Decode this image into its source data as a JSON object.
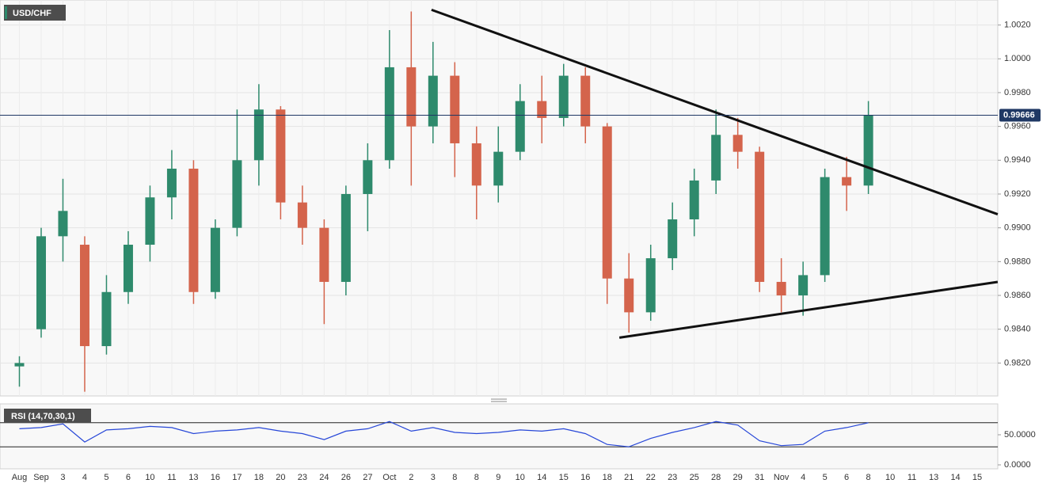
{
  "chart_data": [
    {
      "type": "candlestick",
      "title": "USD/CHF",
      "categories": [
        "Aug",
        "Sep",
        "3",
        "4",
        "5",
        "6",
        "10",
        "11",
        "13",
        "16",
        "17",
        "18",
        "20",
        "23",
        "24",
        "26",
        "27",
        "Oct",
        "2",
        "3",
        "8",
        "8",
        "9",
        "10",
        "14",
        "15",
        "16",
        "18",
        "21",
        "22",
        "23",
        "25",
        "28",
        "29",
        "31",
        "Nov",
        "4",
        "5",
        "6",
        "8",
        "10",
        "11",
        "13",
        "14",
        "15"
      ],
      "open": [
        0.9818,
        0.984,
        0.9895,
        0.989,
        0.983,
        0.9862,
        0.989,
        0.9918,
        0.9935,
        0.9862,
        0.99,
        0.994,
        0.997,
        0.9915,
        0.99,
        0.9868,
        0.992,
        0.994,
        0.9995,
        0.996,
        0.999,
        0.995,
        0.9925,
        0.9945,
        0.9975,
        0.9965,
        0.999,
        0.996,
        0.987,
        0.985,
        0.9882,
        0.9905,
        0.9928,
        0.9955,
        0.9945,
        0.9868,
        0.986,
        0.9872,
        0.993,
        0.9925,
        null,
        null,
        null,
        null,
        null
      ],
      "high": [
        0.9824,
        0.99,
        0.9929,
        0.9895,
        0.9872,
        0.9898,
        0.9925,
        0.9946,
        0.994,
        0.9905,
        0.997,
        0.9985,
        0.9972,
        0.9925,
        0.9905,
        0.9925,
        0.995,
        1.0017,
        1.0028,
        1.001,
        0.9998,
        0.996,
        0.996,
        0.9985,
        0.999,
        0.9997,
        0.9995,
        0.9962,
        0.9885,
        0.989,
        0.9915,
        0.9935,
        0.997,
        0.9965,
        0.9948,
        0.9882,
        0.988,
        0.9935,
        0.9942,
        0.9975,
        null,
        null,
        null,
        null,
        null
      ],
      "low": [
        0.9806,
        0.9835,
        0.988,
        0.9803,
        0.9825,
        0.9855,
        0.988,
        0.9905,
        0.9855,
        0.9858,
        0.9895,
        0.9925,
        0.9905,
        0.989,
        0.9843,
        0.986,
        0.9898,
        0.9935,
        0.9925,
        0.995,
        0.993,
        0.9905,
        0.9915,
        0.994,
        0.995,
        0.996,
        0.995,
        0.9855,
        0.9838,
        0.9845,
        0.9875,
        0.9895,
        0.992,
        0.9935,
        0.9862,
        0.985,
        0.9848,
        0.9868,
        0.991,
        0.992,
        null,
        null,
        null,
        null,
        null
      ],
      "close": [
        0.982,
        0.9895,
        0.991,
        0.983,
        0.9862,
        0.989,
        0.9918,
        0.9935,
        0.9862,
        0.99,
        0.994,
        0.997,
        0.9915,
        0.99,
        0.9868,
        0.992,
        0.994,
        0.9995,
        0.996,
        0.999,
        0.995,
        0.9925,
        0.9945,
        0.9975,
        0.9965,
        0.999,
        0.996,
        0.987,
        0.985,
        0.9882,
        0.9905,
        0.9928,
        0.9955,
        0.9945,
        0.9868,
        0.986,
        0.9872,
        0.993,
        0.9925,
        0.99666,
        null,
        null,
        null,
        null,
        null
      ],
      "up_color": "#2e8a6c",
      "down_color": "#d4644c",
      "ylim": [
        0.98005,
        1.00348
      ],
      "yticks": [
        {
          "value": 1.002,
          "label": "1.0020"
        },
        {
          "value": 1.0,
          "label": "1.0000"
        },
        {
          "value": 0.998,
          "label": "0.9980"
        },
        {
          "value": 0.996,
          "label": "0.9960"
        },
        {
          "value": 0.994,
          "label": "0.9940"
        },
        {
          "value": 0.992,
          "label": "0.9920"
        },
        {
          "value": 0.99,
          "label": "0.9900"
        },
        {
          "value": 0.988,
          "label": "0.9880"
        },
        {
          "value": 0.986,
          "label": "0.9860"
        },
        {
          "value": 0.984,
          "label": "0.9840"
        },
        {
          "value": 0.982,
          "label": "0.9820"
        }
      ],
      "grid": true,
      "trendlines": [
        {
          "x": [
            18.93,
            44.94
          ],
          "y": [
            1.0029,
            0.9908
          ]
        },
        {
          "x": [
            27.56,
            44.94
          ],
          "y": [
            0.9835,
            0.9868
          ]
        }
      ],
      "trendline_color": "#111111"
    },
    {
      "type": "line",
      "title": "RSI (14,70,30,1)",
      "values": [
        60,
        62,
        68,
        38,
        58,
        60,
        64,
        62,
        52,
        56,
        58,
        62,
        56,
        52,
        42,
        56,
        60,
        72,
        56,
        62,
        54,
        52,
        54,
        58,
        56,
        60,
        52,
        34,
        30,
        44,
        54,
        62,
        72,
        66,
        40,
        32,
        34,
        56,
        62,
        70,
        null,
        null,
        null,
        null,
        null
      ],
      "color": "#2747d8",
      "ylim": [
        0,
        100
      ],
      "yticks": [
        {
          "value": 50,
          "label": "50.0000"
        },
        {
          "value": 0,
          "label": "0.0000"
        }
      ],
      "levels": [
        70,
        30
      ]
    }
  ]
}
